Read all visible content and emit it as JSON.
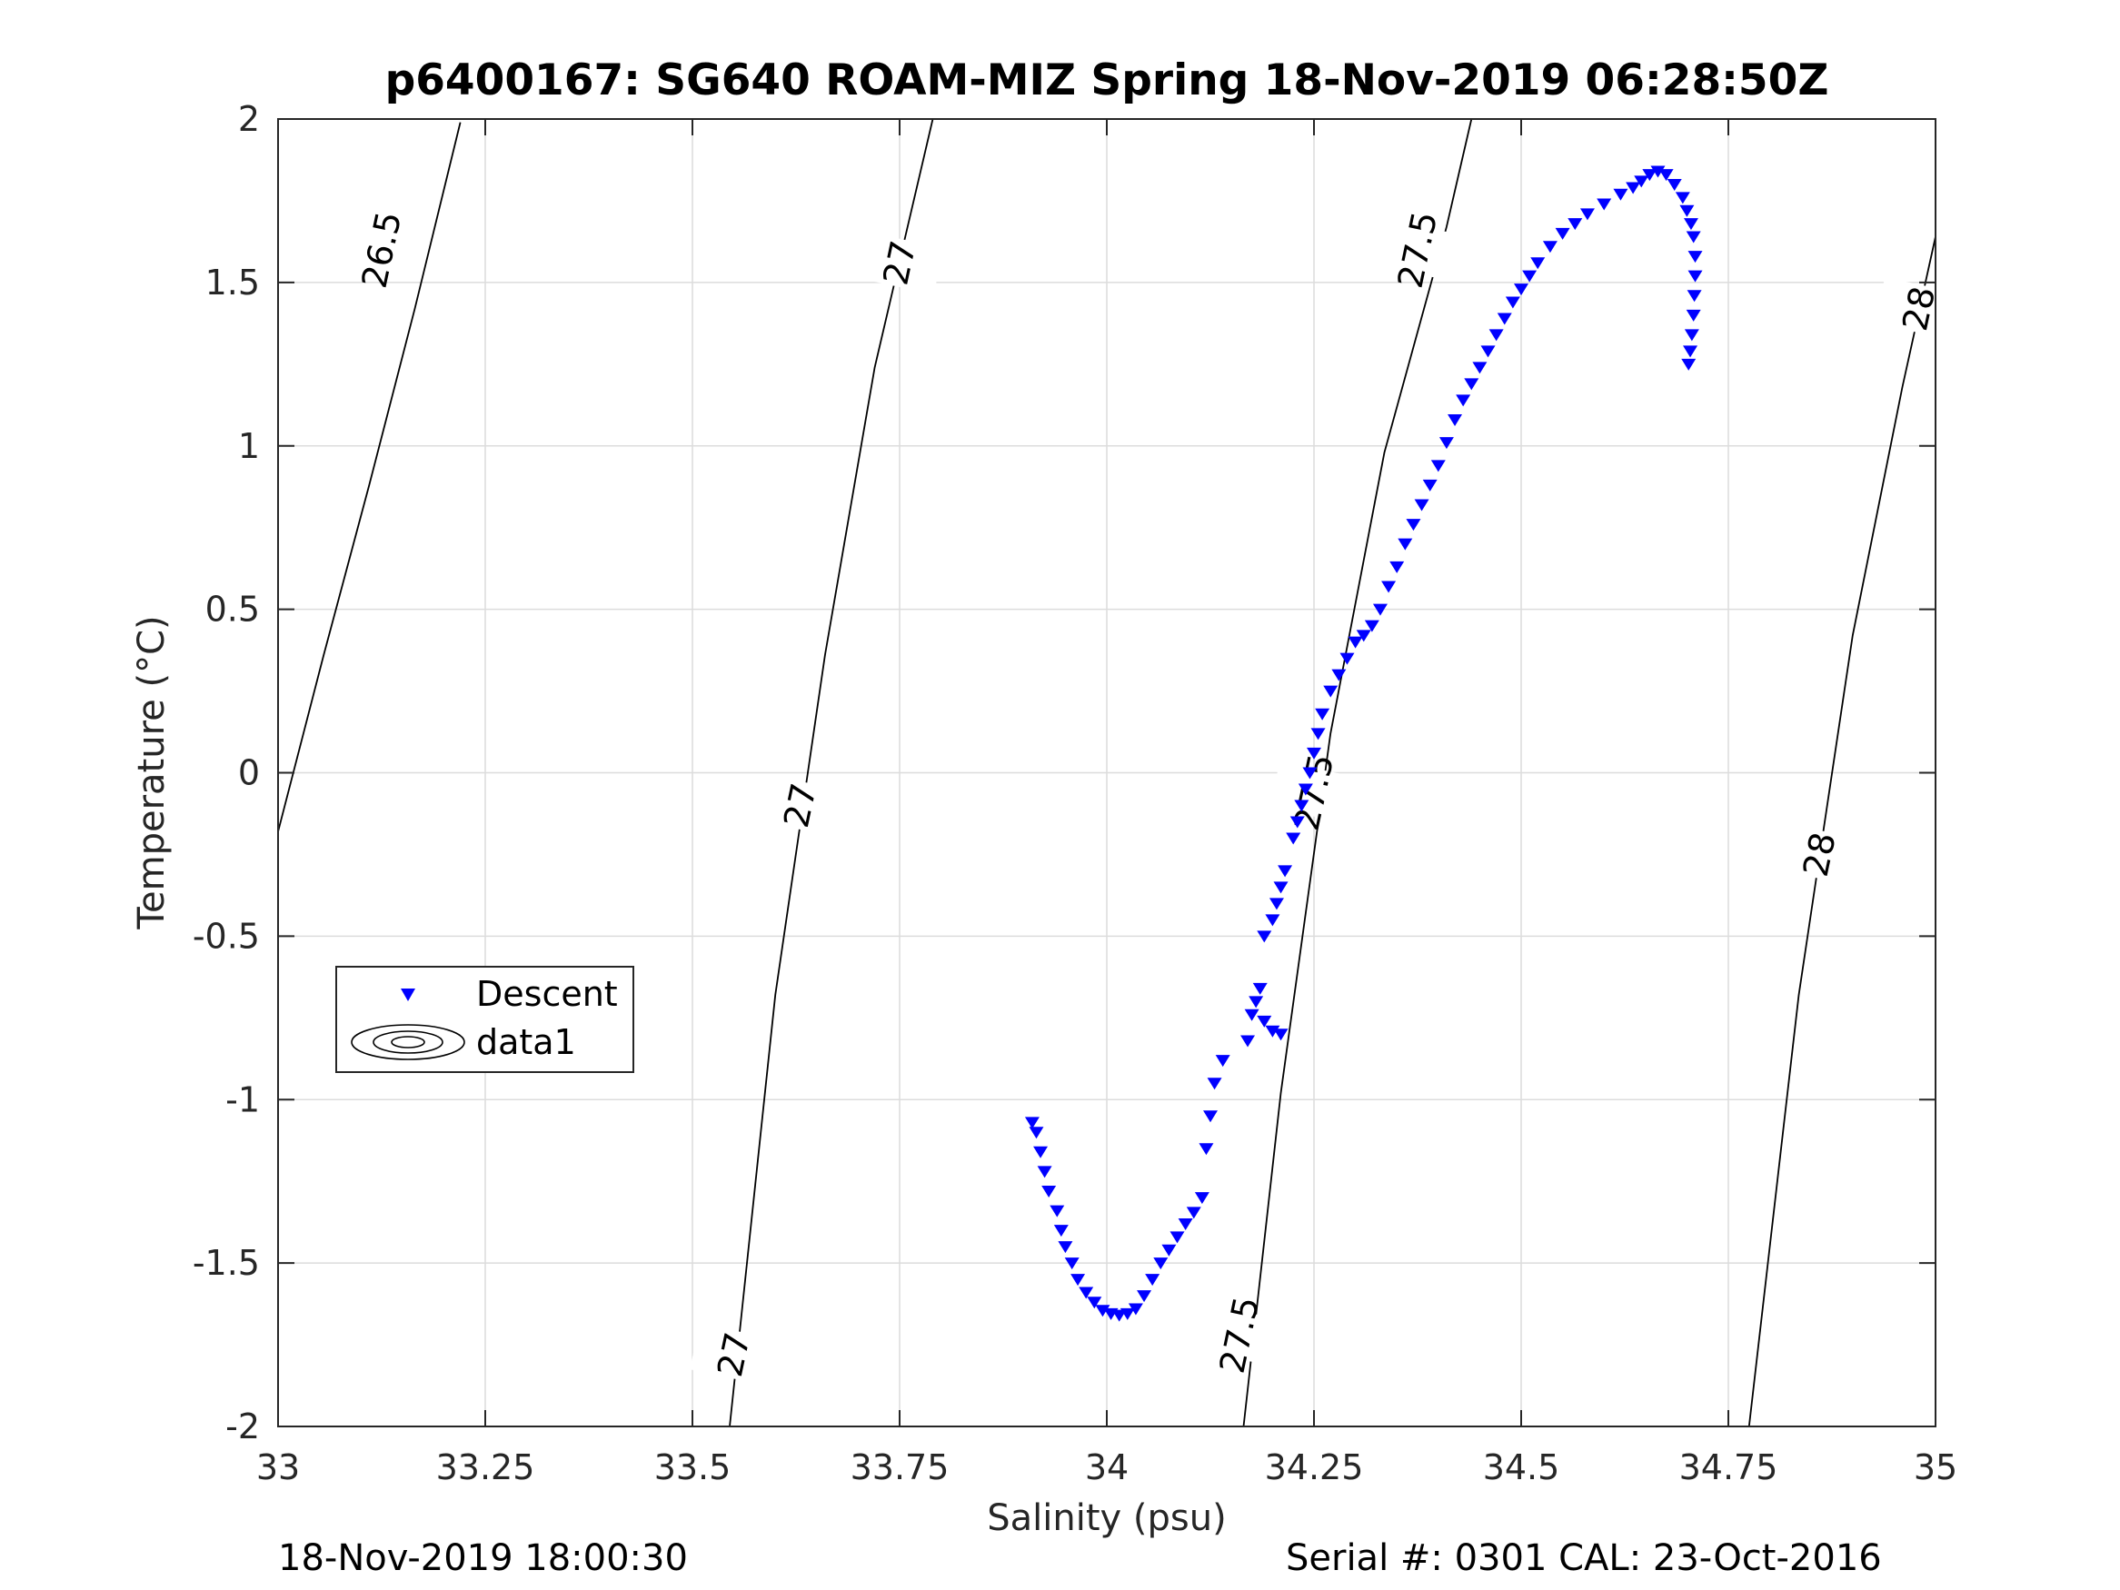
{
  "chart_data": {
    "type": "scatter",
    "title": "p6400167: SG640 ROAM-MIZ Spring 18-Nov-2019 06:28:50Z",
    "xlabel": "Salinity (psu)",
    "ylabel": "Temperature (°C)",
    "xlim": [
      33,
      35
    ],
    "ylim": [
      -2,
      2
    ],
    "x_ticks": [
      33,
      33.25,
      33.5,
      33.75,
      34,
      34.25,
      34.5,
      34.75,
      35
    ],
    "x_tick_labels": [
      "33",
      "33.25",
      "33.5",
      "33.75",
      "34",
      "34.25",
      "34.5",
      "34.75",
      "35"
    ],
    "y_ticks": [
      -2,
      -1.5,
      -1,
      -0.5,
      0,
      0.5,
      1,
      1.5,
      2
    ],
    "y_tick_labels": [
      "-2",
      "-1.5",
      "-1",
      "-0.5",
      "0",
      "0.5",
      "1",
      "1.5",
      "2"
    ],
    "grid": true,
    "legend_position": "lower-left",
    "legend": [
      {
        "label": "Descent",
        "marker": "triangle-down",
        "color": "#0000ff"
      },
      {
        "label": "data1",
        "marker": "contour",
        "color": "#000000"
      }
    ],
    "series": [
      {
        "name": "Descent",
        "marker": "triangle-down",
        "color": "#0000ff",
        "points": [
          [
            33.91,
            -1.07
          ],
          [
            33.915,
            -1.1
          ],
          [
            33.92,
            -1.16
          ],
          [
            33.925,
            -1.22
          ],
          [
            33.93,
            -1.28
          ],
          [
            33.94,
            -1.34
          ],
          [
            33.945,
            -1.4
          ],
          [
            33.95,
            -1.45
          ],
          [
            33.958,
            -1.5
          ],
          [
            33.965,
            -1.55
          ],
          [
            33.975,
            -1.59
          ],
          [
            33.985,
            -1.62
          ],
          [
            33.995,
            -1.645
          ],
          [
            34.005,
            -1.655
          ],
          [
            34.015,
            -1.66
          ],
          [
            34.025,
            -1.655
          ],
          [
            34.035,
            -1.64
          ],
          [
            34.045,
            -1.6
          ],
          [
            34.055,
            -1.55
          ],
          [
            34.065,
            -1.5
          ],
          [
            34.075,
            -1.46
          ],
          [
            34.085,
            -1.42
          ],
          [
            34.095,
            -1.38
          ],
          [
            34.105,
            -1.345
          ],
          [
            34.115,
            -1.3
          ],
          [
            34.12,
            -1.15
          ],
          [
            34.125,
            -1.05
          ],
          [
            34.13,
            -0.95
          ],
          [
            34.14,
            -0.88
          ],
          [
            34.17,
            -0.82
          ],
          [
            34.175,
            -0.74
          ],
          [
            34.18,
            -0.7
          ],
          [
            34.185,
            -0.66
          ],
          [
            34.19,
            -0.76
          ],
          [
            34.2,
            -0.79
          ],
          [
            34.21,
            -0.8
          ],
          [
            34.19,
            -0.5
          ],
          [
            34.2,
            -0.45
          ],
          [
            34.205,
            -0.4
          ],
          [
            34.21,
            -0.35
          ],
          [
            34.215,
            -0.3
          ],
          [
            34.225,
            -0.2
          ],
          [
            34.23,
            -0.15
          ],
          [
            34.235,
            -0.1
          ],
          [
            34.24,
            -0.05
          ],
          [
            34.245,
            0.0
          ],
          [
            34.25,
            0.06
          ],
          [
            34.255,
            0.12
          ],
          [
            34.26,
            0.18
          ],
          [
            34.27,
            0.25
          ],
          [
            34.28,
            0.3
          ],
          [
            34.29,
            0.35
          ],
          [
            34.3,
            0.4
          ],
          [
            34.31,
            0.42
          ],
          [
            34.32,
            0.45
          ],
          [
            34.33,
            0.5
          ],
          [
            34.34,
            0.57
          ],
          [
            34.35,
            0.63
          ],
          [
            34.36,
            0.7
          ],
          [
            34.37,
            0.76
          ],
          [
            34.38,
            0.82
          ],
          [
            34.39,
            0.88
          ],
          [
            34.4,
            0.94
          ],
          [
            34.41,
            1.01
          ],
          [
            34.42,
            1.08
          ],
          [
            34.43,
            1.14
          ],
          [
            34.44,
            1.19
          ],
          [
            34.45,
            1.24
          ],
          [
            34.46,
            1.29
          ],
          [
            34.47,
            1.34
          ],
          [
            34.48,
            1.39
          ],
          [
            34.49,
            1.44
          ],
          [
            34.5,
            1.48
          ],
          [
            34.51,
            1.52
          ],
          [
            34.52,
            1.56
          ],
          [
            34.535,
            1.61
          ],
          [
            34.55,
            1.65
          ],
          [
            34.565,
            1.68
          ],
          [
            34.58,
            1.71
          ],
          [
            34.6,
            1.74
          ],
          [
            34.62,
            1.77
          ],
          [
            34.635,
            1.79
          ],
          [
            34.645,
            1.81
          ],
          [
            34.655,
            1.83
          ],
          [
            34.665,
            1.84
          ],
          [
            34.675,
            1.83
          ],
          [
            34.685,
            1.8
          ],
          [
            34.695,
            1.76
          ],
          [
            34.7,
            1.72
          ],
          [
            34.705,
            1.68
          ],
          [
            34.708,
            1.64
          ],
          [
            34.71,
            1.58
          ],
          [
            34.71,
            1.52
          ],
          [
            34.709,
            1.46
          ],
          [
            34.708,
            1.4
          ],
          [
            34.706,
            1.34
          ],
          [
            34.704,
            1.29
          ],
          [
            34.702,
            1.25
          ]
        ]
      }
    ],
    "contours": [
      {
        "level": "26.5",
        "points": [
          [
            33.0,
            -0.18
          ],
          [
            33.055,
            0.36
          ],
          [
            33.11,
            0.88
          ],
          [
            33.165,
            1.42
          ],
          [
            33.22,
            1.99
          ]
        ]
      },
      {
        "level": "27",
        "points": [
          [
            33.545,
            -2.0
          ],
          [
            33.6,
            -0.68
          ],
          [
            33.66,
            0.36
          ],
          [
            33.72,
            1.24
          ],
          [
            33.79,
            2.0
          ]
        ]
      },
      {
        "level": "27.5",
        "points": [
          [
            34.165,
            -2.0
          ],
          [
            34.21,
            -0.98
          ],
          [
            34.27,
            0.12
          ],
          [
            34.335,
            0.98
          ],
          [
            34.41,
            1.67
          ],
          [
            34.44,
            2.0
          ]
        ]
      },
      {
        "level": "28",
        "points": [
          [
            34.775,
            -2.0
          ],
          [
            34.835,
            -0.68
          ],
          [
            34.9,
            0.42
          ],
          [
            34.96,
            1.18
          ],
          [
            35.0,
            1.64
          ]
        ]
      }
    ],
    "contour_labels": [
      {
        "text": "26.5",
        "x": 33.125,
        "y": 1.6
      },
      {
        "text": "27",
        "x": 33.75,
        "y": 1.56
      },
      {
        "text": "27",
        "x": 33.63,
        "y": -0.1
      },
      {
        "text": "27",
        "x": 33.55,
        "y": -1.78
      },
      {
        "text": "27.5",
        "x": 34.375,
        "y": 1.6
      },
      {
        "text": "27.5",
        "x": 34.25,
        "y": -0.06
      },
      {
        "text": "27.5",
        "x": 34.16,
        "y": -1.72
      },
      {
        "text": "28",
        "x": 34.98,
        "y": 1.42
      },
      {
        "text": "28",
        "x": 34.86,
        "y": -0.25
      }
    ]
  },
  "footer": {
    "left": "18-Nov-2019 18:00:30",
    "right": "Serial #: 0301  CAL: 23-Oct-2016"
  }
}
